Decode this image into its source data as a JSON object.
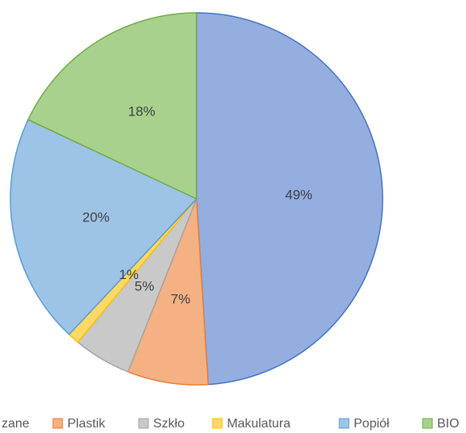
{
  "chart_data": {
    "type": "pie",
    "categories": [
      "zane",
      "Plastik",
      "Szkło",
      "Makulatura",
      "Popiół",
      "BIO"
    ],
    "values": [
      49,
      7,
      5,
      1,
      20,
      18
    ],
    "colors": [
      "#94aee0",
      "#f4b183",
      "#c9c9c9",
      "#ffd966",
      "#9dc3e6",
      "#a9d18e"
    ],
    "edge_colors": [
      "#4472c4",
      "#ed7d31",
      "#a5a5a5",
      "#ffc000",
      "#5b9bd5",
      "#70ad47"
    ],
    "value_labels": [
      "49%",
      "7%",
      "5%",
      "1%",
      "20%",
      "18%"
    ],
    "legend": "bottom"
  }
}
